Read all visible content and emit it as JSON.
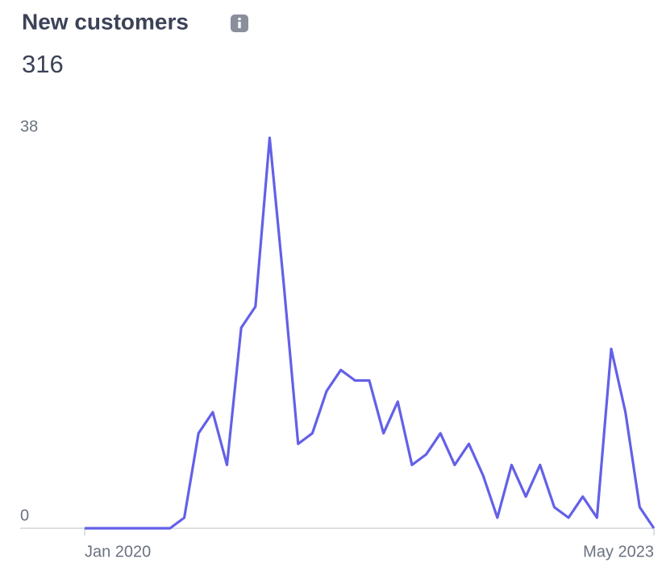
{
  "chart_data": {
    "type": "line",
    "title": "New customers",
    "total": 316,
    "categories": [
      "Jan 2020",
      null,
      null,
      null,
      null,
      null,
      null,
      null,
      null,
      null,
      null,
      null,
      null,
      null,
      null,
      null,
      null,
      null,
      null,
      null,
      null,
      null,
      null,
      null,
      null,
      null,
      null,
      null,
      null,
      null,
      null,
      null,
      null,
      null,
      null,
      null,
      null,
      null,
      null,
      null,
      "May 2023"
    ],
    "series": [
      {
        "name": "New customers",
        "color": "#6360e8",
        "values": [
          0,
          0,
          0,
          0,
          0,
          0,
          0,
          1,
          9,
          11,
          6,
          19,
          21,
          37,
          23,
          8,
          9,
          13,
          15,
          14,
          14,
          9,
          12,
          6,
          7,
          9,
          6,
          8,
          5,
          1,
          6,
          3,
          6,
          2,
          1,
          3,
          1,
          17,
          11,
          2,
          0
        ]
      }
    ],
    "ylim": [
      0,
      38
    ],
    "yticks": [
      0,
      38
    ]
  }
}
